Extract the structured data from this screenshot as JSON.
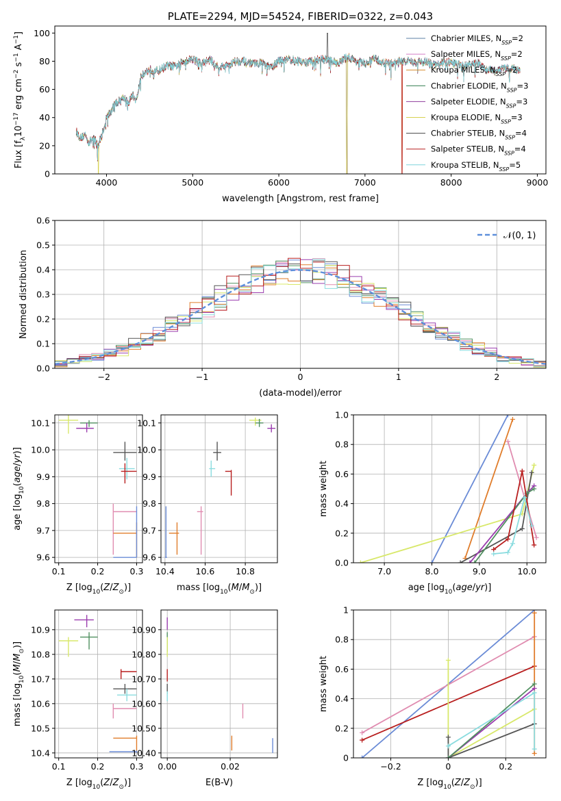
{
  "colors": {
    "cm": "#5b7fa6",
    "sm": "#d47ec6",
    "km": "#d98b2e",
    "ce": "#2e7a4a",
    "se": "#8e3a9c",
    "ke": "#d6d14f",
    "cs": "#444444",
    "ss": "#b81e1e",
    "ks": "#7fd4dc",
    "p_blue": "#6a8bd6",
    "p_orange": "#e07c2a",
    "p_pink": "#e08cb0",
    "p_red": "#b81e1e",
    "p_cyan": "#8adcdf",
    "p_gray": "#555555",
    "p_green": "#4f8f5f",
    "p_purple": "#9a3cae",
    "p_yellow": "#d8e86a",
    "dash": "#5d8fdb"
  },
  "chart_data": [
    {
      "id": "spectrum",
      "type": "line",
      "title": "PLATE=2294, MJD=54524, FIBERID=0322, z=0.043",
      "xlabel": "wavelength [Angstrom, rest frame]",
      "ylabel": "Flux [fλ10⁻¹⁷ erg cm⁻² s⁻¹ A⁻¹]",
      "xlim": [
        3400,
        9100
      ],
      "ylim": [
        0,
        105
      ],
      "xticks": [
        4000,
        5000,
        6000,
        7000,
        8000,
        9000
      ],
      "yticks": [
        0,
        20,
        40,
        60,
        80,
        100
      ],
      "legend_position": "upper-right",
      "grid": false,
      "continuum": {
        "x": [
          3650,
          3700,
          3750,
          3800,
          3850,
          3900,
          3950,
          4000,
          4050,
          4100,
          4150,
          4200,
          4250,
          4300,
          4350,
          4400,
          4450,
          4500,
          4600,
          4700,
          4800,
          4900,
          5000,
          5100,
          5200,
          5300,
          5400,
          5500,
          5600,
          5700,
          5800,
          5900,
          6000,
          6100,
          6200,
          6300,
          6400,
          6500,
          6600,
          6700,
          6800,
          6900,
          7000,
          7100,
          7200,
          7300,
          7400,
          7500,
          7600,
          7700,
          7800,
          7900,
          8000,
          8100,
          8200,
          8300,
          8400,
          8500,
          8600,
          8700,
          8800
        ],
        "y": [
          30,
          25,
          28,
          22,
          26,
          20,
          28,
          40,
          44,
          50,
          52,
          55,
          50,
          56,
          52,
          70,
          72,
          74,
          73,
          77,
          76,
          80,
          82,
          78,
          81,
          76,
          77,
          80,
          80,
          78,
          79,
          75,
          80,
          82,
          80,
          79,
          80,
          82,
          80,
          79,
          83,
          80,
          78,
          82,
          79,
          78,
          80,
          80,
          79,
          80,
          77,
          79,
          79,
          77,
          77,
          79,
          74,
          73,
          75,
          75,
          73
        ]
      },
      "series": [
        {
          "name": "Chabrier MILES, N_SSP=2",
          "key": "cm",
          "drop_at": null
        },
        {
          "name": "Salpeter MILES, N_SSP=2",
          "key": "sm",
          "drop_at": null
        },
        {
          "name": "Kroupa MILES, N_SSP=2",
          "key": "km",
          "drop_at": 7430
        },
        {
          "name": "Chabrier ELODIE, N_SSP=3",
          "key": "ce",
          "drop_at": 6790
        },
        {
          "name": "Salpeter ELODIE, N_SSP=3",
          "key": "se",
          "drop_at": 6790
        },
        {
          "name": "Kroupa ELODIE, N_SSP=3",
          "key": "ke",
          "drop_at": 6790
        },
        {
          "name": "Chabrier STELIB, N_SSP=4",
          "key": "cs",
          "drop_at": null
        },
        {
          "name": "Salpeter STELIB, N_SSP=4",
          "key": "ss",
          "drop_at": 7430
        },
        {
          "name": "Kroupa STELIB, N_SSP=5",
          "key": "ks",
          "drop_at": null
        }
      ]
    },
    {
      "id": "residuals",
      "type": "histogram",
      "xlabel": "(data-model)/error",
      "ylabel": "Normed distribution",
      "xlim": [
        -2.5,
        2.5
      ],
      "ylim": [
        0,
        0.6
      ],
      "xticks": [
        -2,
        -1,
        0,
        1,
        2
      ],
      "yticks": [
        0.0,
        0.1,
        0.2,
        0.3,
        0.4,
        0.5,
        0.6
      ],
      "legend": "𝒩(0, 1)",
      "legend_position": "upper-right",
      "grid": true,
      "bin_width": 0.125
    },
    {
      "id": "age-vs-z",
      "type": "scatter",
      "xlabel": "Z [log10(Z/Z⊙)]",
      "ylabel": "age [log10(age/yr)]",
      "xlim": [
        0.09,
        0.315
      ],
      "ylim": [
        9.58,
        10.13
      ],
      "xticks": [
        0.1,
        0.2,
        0.3
      ],
      "yticks": [
        9.6,
        9.7,
        9.8,
        9.9,
        10.0,
        10.1
      ],
      "grid": true,
      "points": [
        {
          "c": "p_yellow",
          "x": 0.125,
          "y": 10.11,
          "xl": 0.1,
          "xh": 0.15,
          "yl": 10.06,
          "yh": 10.13
        },
        {
          "c": "p_green",
          "x": 0.178,
          "y": 10.1,
          "xl": 0.155,
          "xh": 0.2,
          "yl": 10.085,
          "yh": 10.11
        },
        {
          "c": "p_purple",
          "x": 0.172,
          "y": 10.08,
          "xl": 0.145,
          "xh": 0.19,
          "yl": 10.065,
          "yh": 10.1
        },
        {
          "c": "p_gray",
          "x": 0.27,
          "y": 9.99,
          "xl": 0.24,
          "xh": 0.3,
          "yl": 9.96,
          "yh": 10.03
        },
        {
          "c": "p_cyan",
          "x": 0.275,
          "y": 9.93,
          "xl": 0.255,
          "xh": 0.295,
          "yl": 9.89,
          "yh": 9.97
        },
        {
          "c": "p_red",
          "x": 0.27,
          "y": 9.92,
          "xl": 0.26,
          "xh": 0.3,
          "yl": 9.875,
          "yh": 9.95
        },
        {
          "c": "p_pink",
          "x": 0.24,
          "y": 9.77,
          "xl": 0.24,
          "xh": 0.3,
          "yl": 9.61,
          "yh": 9.8
        },
        {
          "c": "p_orange",
          "x": 0.3,
          "y": 9.69,
          "xl": 0.24,
          "xh": 0.3,
          "yl": 9.6,
          "yh": 9.73
        },
        {
          "c": "p_blue",
          "x": 0.3,
          "y": 9.6,
          "xl": 0.24,
          "xh": 0.3,
          "yl": 9.6,
          "yh": 9.79
        }
      ]
    },
    {
      "id": "age-vs-mass",
      "type": "scatter",
      "xlabel": "mass [log10(M/M⊙)]",
      "ylabel": "",
      "xlim": [
        10.38,
        10.96
      ],
      "ylim": [
        9.58,
        10.13
      ],
      "xticks": [
        10.4,
        10.6,
        10.8
      ],
      "yticks": [
        9.6,
        9.7,
        9.8,
        9.9,
        10.0,
        10.1
      ],
      "grid": true,
      "points": [
        {
          "c": "p_yellow",
          "x": 10.85,
          "y": 10.11,
          "xl": 10.82,
          "xh": 10.88,
          "yl": 10.09,
          "yh": 10.12
        },
        {
          "c": "p_green",
          "x": 10.87,
          "y": 10.1,
          "xl": 10.85,
          "xh": 10.89,
          "yl": 10.085,
          "yh": 10.115
        },
        {
          "c": "p_purple",
          "x": 10.93,
          "y": 10.08,
          "xl": 10.91,
          "xh": 10.95,
          "yl": 10.065,
          "yh": 10.095
        },
        {
          "c": "p_gray",
          "x": 10.66,
          "y": 9.99,
          "xl": 10.64,
          "xh": 10.68,
          "yl": 9.96,
          "yh": 10.03
        },
        {
          "c": "p_cyan",
          "x": 10.63,
          "y": 9.93,
          "xl": 10.62,
          "xh": 10.65,
          "yl": 9.9,
          "yh": 9.96
        },
        {
          "c": "p_red",
          "x": 10.73,
          "y": 9.92,
          "xl": 10.7,
          "xh": 10.73,
          "yl": 9.83,
          "yh": 9.925
        },
        {
          "c": "p_pink",
          "x": 10.58,
          "y": 9.77,
          "xl": 10.56,
          "xh": 10.59,
          "yl": 9.61,
          "yh": 9.79
        },
        {
          "c": "p_orange",
          "x": 10.46,
          "y": 9.69,
          "xl": 10.42,
          "xh": 10.47,
          "yl": 9.61,
          "yh": 9.73
        },
        {
          "c": "p_blue",
          "x": 10.405,
          "y": 9.6,
          "xl": 10.4,
          "xh": 10.41,
          "yl": 9.6,
          "yh": 9.79
        }
      ]
    },
    {
      "id": "weight-vs-age",
      "type": "line",
      "xlabel": "age [log10(age/yr)]",
      "ylabel": "mass weight",
      "xlim": [
        6.35,
        10.4
      ],
      "ylim": [
        0,
        1
      ],
      "xticks": [
        7,
        8,
        9,
        10
      ],
      "yticks": [
        0.0,
        0.2,
        0.4,
        0.6,
        0.8,
        1.0
      ],
      "grid": true,
      "series": [
        {
          "c": "p_blue",
          "x": [
            8.0,
            9.6
          ],
          "y": [
            0.0,
            1.0
          ]
        },
        {
          "c": "p_orange",
          "x": [
            8.7,
            9.7
          ],
          "y": [
            0.03,
            0.97
          ]
        },
        {
          "c": "p_pink",
          "x": [
            9.6,
            10.2
          ],
          "y": [
            0.82,
            0.17
          ]
        },
        {
          "c": "p_yellow",
          "x": [
            6.5,
            9.9,
            10.15
          ],
          "y": [
            0.0,
            0.33,
            0.66
          ]
        },
        {
          "c": "p_gray",
          "x": [
            8.6,
            9.9,
            10.1
          ],
          "y": [
            0.0,
            0.23,
            0.61
          ]
        },
        {
          "c": "p_purple",
          "x": [
            8.8,
            10.0,
            10.15
          ],
          "y": [
            0.0,
            0.47,
            0.52
          ]
        },
        {
          "c": "p_green",
          "x": [
            8.9,
            10.0,
            10.15
          ],
          "y": [
            0.0,
            0.47,
            0.5
          ]
        },
        {
          "c": "p_red",
          "x": [
            9.3,
            9.6,
            9.9,
            10.15
          ],
          "y": [
            0.09,
            0.16,
            0.62,
            0.12
          ]
        },
        {
          "c": "p_cyan",
          "x": [
            9.3,
            9.6,
            9.7,
            9.95,
            10.1
          ],
          "y": [
            0.06,
            0.07,
            0.13,
            0.44,
            0.25
          ]
        }
      ]
    },
    {
      "id": "mass-vs-z",
      "type": "scatter",
      "xlabel": "Z [log10(Z/Z⊙)]",
      "ylabel": "mass [log10(M/M⊙)]",
      "xlim": [
        0.09,
        0.315
      ],
      "ylim": [
        10.38,
        10.98
      ],
      "xticks": [
        0.1,
        0.2,
        0.3
      ],
      "yticks": [
        10.4,
        10.5,
        10.6,
        10.7,
        10.8,
        10.9
      ],
      "grid": true,
      "points": [
        {
          "c": "p_purple",
          "x": 0.172,
          "y": 10.94,
          "xl": 0.14,
          "xh": 0.19,
          "yl": 10.91,
          "yh": 10.96
        },
        {
          "c": "p_green",
          "x": 0.178,
          "y": 10.87,
          "xl": 0.155,
          "xh": 0.2,
          "yl": 10.82,
          "yh": 10.89
        },
        {
          "c": "p_yellow",
          "x": 0.125,
          "y": 10.855,
          "xl": 0.1,
          "xh": 0.15,
          "yl": 10.79,
          "yh": 10.87
        },
        {
          "c": "p_red",
          "x": 0.26,
          "y": 10.73,
          "xl": 0.26,
          "xh": 0.3,
          "yl": 10.7,
          "yh": 10.74
        },
        {
          "c": "p_gray",
          "x": 0.27,
          "y": 10.66,
          "xl": 0.24,
          "xh": 0.3,
          "yl": 10.64,
          "yh": 10.68
        },
        {
          "c": "p_cyan",
          "x": 0.275,
          "y": 10.635,
          "xl": 0.25,
          "xh": 0.3,
          "yl": 10.61,
          "yh": 10.66
        },
        {
          "c": "p_pink",
          "x": 0.24,
          "y": 10.58,
          "xl": 0.24,
          "xh": 0.3,
          "yl": 10.54,
          "yh": 10.6
        },
        {
          "c": "p_orange",
          "x": 0.3,
          "y": 10.46,
          "xl": 0.24,
          "xh": 0.3,
          "yl": 10.4,
          "yh": 10.47
        },
        {
          "c": "p_blue",
          "x": 0.3,
          "y": 10.405,
          "xl": 0.23,
          "xh": 0.3,
          "yl": 10.4,
          "yh": 10.41
        }
      ]
    },
    {
      "id": "mass-vs-ebv",
      "type": "scatter",
      "xlabel": "E(B-V)",
      "ylabel": "",
      "xlim": [
        -0.002,
        0.035
      ],
      "ylim": [
        10.38,
        10.98
      ],
      "xticks": [
        0.0,
        0.02
      ],
      "yticks": [
        10.4,
        10.5,
        10.6,
        10.7,
        10.8,
        10.9
      ],
      "grid": true,
      "points": [
        {
          "c": "p_purple",
          "x": 0.0,
          "y": 10.93,
          "xl": 0.0,
          "xh": 0.0,
          "yl": 10.9,
          "yh": 10.95
        },
        {
          "c": "p_green",
          "x": 0.0,
          "y": 10.85,
          "xl": 0.0,
          "xh": 0.0,
          "yl": 10.81,
          "yh": 10.89
        },
        {
          "c": "p_yellow",
          "x": 0.0,
          "y": 10.83,
          "xl": 0.0,
          "xh": 0.0,
          "yl": 10.79,
          "yh": 10.87
        },
        {
          "c": "p_red",
          "x": 0.0,
          "y": 10.72,
          "xl": 0.0,
          "xh": 0.0,
          "yl": 10.69,
          "yh": 10.74
        },
        {
          "c": "p_gray",
          "x": 0.0,
          "y": 10.66,
          "xl": 0.0,
          "xh": 0.0,
          "yl": 10.64,
          "yh": 10.68
        },
        {
          "c": "p_cyan",
          "x": 0.0,
          "y": 10.63,
          "xl": 0.0,
          "xh": 0.0,
          "yl": 10.61,
          "yh": 10.65
        },
        {
          "c": "p_pink",
          "x": 0.024,
          "y": 10.57,
          "xl": 0.024,
          "xh": 0.024,
          "yl": 10.54,
          "yh": 10.6
        },
        {
          "c": "p_orange",
          "x": 0.0205,
          "y": 10.44,
          "xl": 0.0205,
          "xh": 0.0205,
          "yl": 10.41,
          "yh": 10.47
        },
        {
          "c": "p_blue",
          "x": 0.0335,
          "y": 10.43,
          "xl": 0.0335,
          "xh": 0.0335,
          "yl": 10.4,
          "yh": 10.46
        }
      ]
    },
    {
      "id": "weight-vs-z",
      "type": "line",
      "xlabel": "Z [log10(Z/Z⊙)]",
      "ylabel": "mass weight",
      "xlim": [
        -0.33,
        0.34
      ],
      "ylim": [
        0,
        1
      ],
      "xticks": [
        -0.2,
        0.0,
        0.2
      ],
      "yticks": [
        0.0,
        0.2,
        0.4,
        0.6,
        0.8,
        1.0
      ],
      "grid": true,
      "series": [
        {
          "c": "p_blue",
          "x": [
            -0.3,
            0.3
          ],
          "y": [
            0.0,
            1.0
          ]
        },
        {
          "c": "p_pink",
          "x": [
            -0.3,
            0.3
          ],
          "y": [
            0.17,
            0.82
          ]
        },
        {
          "c": "p_red",
          "x": [
            -0.3,
            0.3
          ],
          "y": [
            0.12,
            0.62
          ]
        },
        {
          "c": "p_orange",
          "x": [
            0.3,
            0.3
          ],
          "y": [
            0.03,
            0.98
          ]
        },
        {
          "c": "p_yellow",
          "x": [
            0.0,
            0.0,
            0.3
          ],
          "y": [
            0.66,
            0.0,
            0.33
          ]
        },
        {
          "c": "p_gray",
          "x": [
            0.0,
            0.0,
            0.3
          ],
          "y": [
            0.14,
            0.0,
            0.23
          ]
        },
        {
          "c": "p_purple",
          "x": [
            0.0,
            0.3
          ],
          "y": [
            0.0,
            0.47
          ]
        },
        {
          "c": "p_green",
          "x": [
            0.0,
            0.3
          ],
          "y": [
            0.0,
            0.5
          ]
        },
        {
          "c": "p_cyan",
          "x": [
            0.0,
            0.3,
            0.3
          ],
          "y": [
            0.08,
            0.44,
            0.06
          ]
        }
      ]
    }
  ]
}
